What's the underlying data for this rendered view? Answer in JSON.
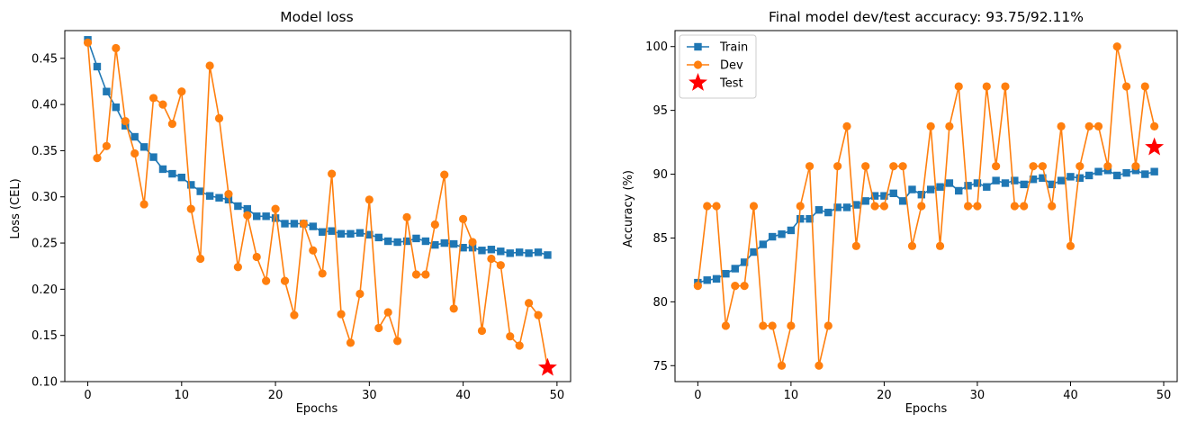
{
  "chart_data": [
    {
      "type": "line",
      "title": "Model loss",
      "xlabel": "Epochs",
      "ylabel": "Loss (CEL)",
      "xlim": [
        -2.45,
        51.45
      ],
      "ylim": [
        0.1,
        0.48
      ],
      "xticks": [
        0,
        10,
        20,
        30,
        40,
        50
      ],
      "yticks": [
        0.1,
        0.15,
        0.2,
        0.25,
        0.3,
        0.35,
        0.4,
        0.45
      ],
      "ytick_labels": [
        "0.10",
        "0.15",
        "0.20",
        "0.25",
        "0.30",
        "0.35",
        "0.40",
        "0.45"
      ],
      "grid": false,
      "series": [
        {
          "marker": "square",
          "color": "#1f77b4",
          "values": [
            0.47,
            0.441,
            0.414,
            0.397,
            0.377,
            0.365,
            0.354,
            0.343,
            0.33,
            0.325,
            0.321,
            0.313,
            0.306,
            0.301,
            0.299,
            0.297,
            0.29,
            0.287,
            0.279,
            0.279,
            0.277,
            0.271,
            0.271,
            0.271,
            0.268,
            0.262,
            0.263,
            0.26,
            0.26,
            0.261,
            0.259,
            0.256,
            0.252,
            0.251,
            0.252,
            0.255,
            0.252,
            0.248,
            0.25,
            0.249,
            0.245,
            0.245,
            0.242,
            0.243,
            0.241,
            0.239,
            0.24,
            0.239,
            0.24,
            0.237
          ]
        },
        {
          "marker": "circle",
          "color": "#ff7f0e",
          "values": [
            0.467,
            0.342,
            0.355,
            0.461,
            0.382,
            0.347,
            0.292,
            0.407,
            0.4,
            0.379,
            0.414,
            0.287,
            0.233,
            0.442,
            0.385,
            0.303,
            0.224,
            0.28,
            0.235,
            0.209,
            0.287,
            0.209,
            0.172,
            0.271,
            0.242,
            0.217,
            0.325,
            0.173,
            0.142,
            0.195,
            0.297,
            0.158,
            0.175,
            0.144,
            0.278,
            0.216,
            0.216,
            0.27,
            0.324,
            0.179,
            0.276,
            0.251,
            0.155,
            0.233,
            0.226,
            0.149,
            0.139,
            0.185,
            0.172,
            0.115
          ]
        },
        {
          "marker": "star",
          "color": "#ff0000",
          "x": [
            49
          ],
          "values": [
            0.115
          ]
        }
      ]
    },
    {
      "type": "line",
      "title": "Final model dev/test accuracy: 93.75/92.11%",
      "xlabel": "Epochs",
      "ylabel": "Accuracy (%)",
      "xlim": [
        -2.45,
        51.45
      ],
      "ylim": [
        73.75,
        101.25
      ],
      "xticks": [
        0,
        10,
        20,
        30,
        40,
        50
      ],
      "yticks": [
        75,
        80,
        85,
        90,
        95,
        100
      ],
      "ytick_labels": [
        "75",
        "80",
        "85",
        "90",
        "95",
        "100"
      ],
      "grid": false,
      "legend_position": "top-left",
      "series": [
        {
          "name": "Train",
          "marker": "square",
          "color": "#1f77b4",
          "values": [
            81.5,
            81.7,
            81.8,
            82.2,
            82.6,
            83.1,
            83.9,
            84.5,
            85.1,
            85.3,
            85.6,
            86.5,
            86.5,
            87.2,
            87.0,
            87.4,
            87.4,
            87.6,
            87.9,
            88.3,
            88.3,
            88.5,
            87.9,
            88.8,
            88.4,
            88.8,
            89.0,
            89.3,
            88.7,
            89.1,
            89.3,
            89.0,
            89.5,
            89.3,
            89.5,
            89.2,
            89.6,
            89.7,
            89.2,
            89.5,
            89.8,
            89.7,
            89.9,
            90.2,
            90.3,
            89.9,
            90.1,
            90.3,
            90.0,
            90.2
          ]
        },
        {
          "name": "Dev",
          "marker": "circle",
          "color": "#ff7f0e",
          "values": [
            81.25,
            87.5,
            87.5,
            78.125,
            81.25,
            81.25,
            87.5,
            78.125,
            78.125,
            75.0,
            78.125,
            87.5,
            90.625,
            75.0,
            78.125,
            90.625,
            93.75,
            84.375,
            90.625,
            87.5,
            87.5,
            90.625,
            90.625,
            84.375,
            87.5,
            93.75,
            84.375,
            93.75,
            96.875,
            87.5,
            87.5,
            96.875,
            90.625,
            96.875,
            87.5,
            87.5,
            90.625,
            90.625,
            87.5,
            93.75,
            84.375,
            90.625,
            93.75,
            93.75,
            90.625,
            100.0,
            96.875,
            90.625,
            96.875,
            93.75
          ]
        },
        {
          "name": "Test",
          "marker": "star",
          "color": "#ff0000",
          "x": [
            49
          ],
          "values": [
            92.11
          ]
        }
      ]
    }
  ]
}
